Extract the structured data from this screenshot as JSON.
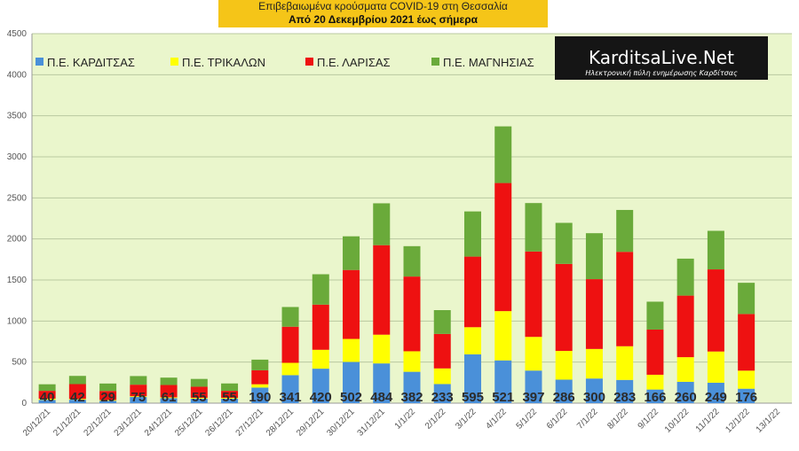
{
  "title": {
    "line1": "Επιβεβαιωμένα κρούσματα COVID-19 στη Θεσσαλία",
    "line2": "Από 20 Δεκεμβρίου 2021 έως σήμερα"
  },
  "logo": {
    "main_text": "KarditsaLive.Net",
    "sub_text": "Ηλεκτρονική πύλη ενημέρωσης Καρδίτσας"
  },
  "colors": {
    "plot_bg": "#eaf6cc",
    "grid": "#b9c9a0",
    "logo_bg": "#151515"
  },
  "chart_data": {
    "type": "bar",
    "stacked": true,
    "categories": [
      "20/12/21",
      "21/12/21",
      "22/12/21",
      "23/12/21",
      "24/12/21",
      "25/12/21",
      "26/12/21",
      "27/12/21",
      "28/12/21",
      "29/12/21",
      "30/12/21",
      "31/12/21",
      "1/1/22",
      "2/1/22",
      "3/1/22",
      "4/1/22",
      "5/1/22",
      "6/1/22",
      "7/1/22",
      "8/1/22",
      "9/1/22",
      "10/1/22",
      "11/1/22",
      "12/1/22",
      "13/1/22"
    ],
    "series": [
      {
        "name": "Π.Ε. ΚΑΡΔΙΤΣΑΣ",
        "color": "#4a90d9",
        "values": [
          40,
          42,
          29,
          75,
          61,
          55,
          55,
          190,
          341,
          420,
          502,
          484,
          382,
          233,
          595,
          521,
          397,
          286,
          300,
          283,
          166,
          260,
          249,
          176,
          null
        ]
      },
      {
        "name": "Π.Ε. ΤΡΙΚΑΛΩΝ",
        "color": "#ffff00",
        "values": [
          15,
          10,
          10,
          10,
          10,
          10,
          10,
          40,
          150,
          230,
          280,
          350,
          250,
          190,
          330,
          600,
          410,
          350,
          360,
          410,
          180,
          300,
          380,
          220,
          null
        ]
      },
      {
        "name": "Π.Ε. ΛΑΡΙΣΑΣ",
        "color": "#ee1111",
        "values": [
          95,
          180,
          110,
          140,
          150,
          135,
          85,
          170,
          440,
          550,
          840,
          1090,
          910,
          420,
          860,
          1560,
          1040,
          1060,
          850,
          1150,
          550,
          750,
          1000,
          690,
          null
        ]
      },
      {
        "name": "Π.Ε. ΜΑΓΝΗΣΙΑΣ",
        "color": "#6aaa3a",
        "values": [
          80,
          100,
          90,
          105,
          90,
          95,
          90,
          130,
          240,
          370,
          410,
          510,
          370,
          290,
          550,
          690,
          590,
          500,
          560,
          510,
          340,
          450,
          470,
          380,
          null
        ]
      }
    ],
    "data_labels": [
      40,
      42,
      29,
      75,
      61,
      55,
      55,
      190,
      341,
      420,
      502,
      484,
      382,
      233,
      595,
      521,
      397,
      286,
      300,
      283,
      166,
      260,
      249,
      176,
      null
    ],
    "ylim": [
      0,
      4500
    ],
    "yticks": [
      0,
      500,
      1000,
      1500,
      2000,
      2500,
      3000,
      3500,
      4000,
      4500
    ],
    "grid": true,
    "legend_position": "top-left"
  }
}
